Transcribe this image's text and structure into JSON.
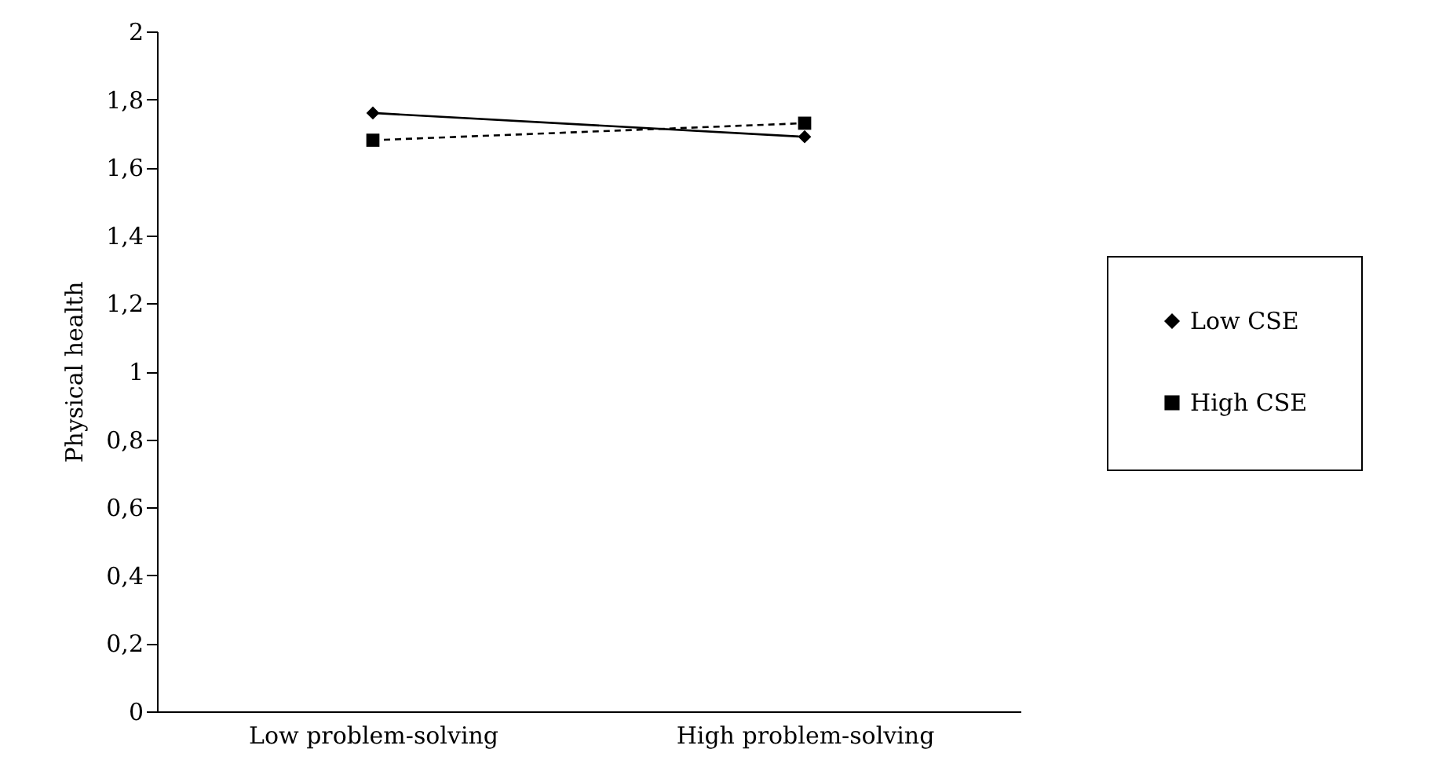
{
  "chart_data": {
    "type": "line",
    "ylabel": "Physical health",
    "categories": [
      "Low problem-solving",
      "High problem-solving"
    ],
    "series": [
      {
        "name": "Low CSE",
        "color": "#000000",
        "values": [
          1.76,
          1.69
        ],
        "marker": "diamond",
        "line_style": "solid"
      },
      {
        "name": "High CSE",
        "color": "#000000",
        "values": [
          1.68,
          1.73
        ],
        "marker": "square",
        "line_style": "dashed"
      }
    ],
    "ylim": [
      0,
      2
    ],
    "yticks": [
      0,
      {
        "value": 0.2,
        "label": "0,2"
      },
      {
        "value": 0.4,
        "label": "0,4"
      },
      {
        "value": 0.6,
        "label": "0,6"
      },
      {
        "value": 0.8,
        "label": "0,8"
      },
      1,
      {
        "value": 1.2,
        "label": "1,2"
      },
      {
        "value": 1.4,
        "label": "1,4"
      },
      {
        "value": 1.6,
        "label": "1,6"
      },
      {
        "value": 1.8,
        "label": "1,8"
      },
      2
    ],
    "grid": false,
    "legend": "right"
  }
}
